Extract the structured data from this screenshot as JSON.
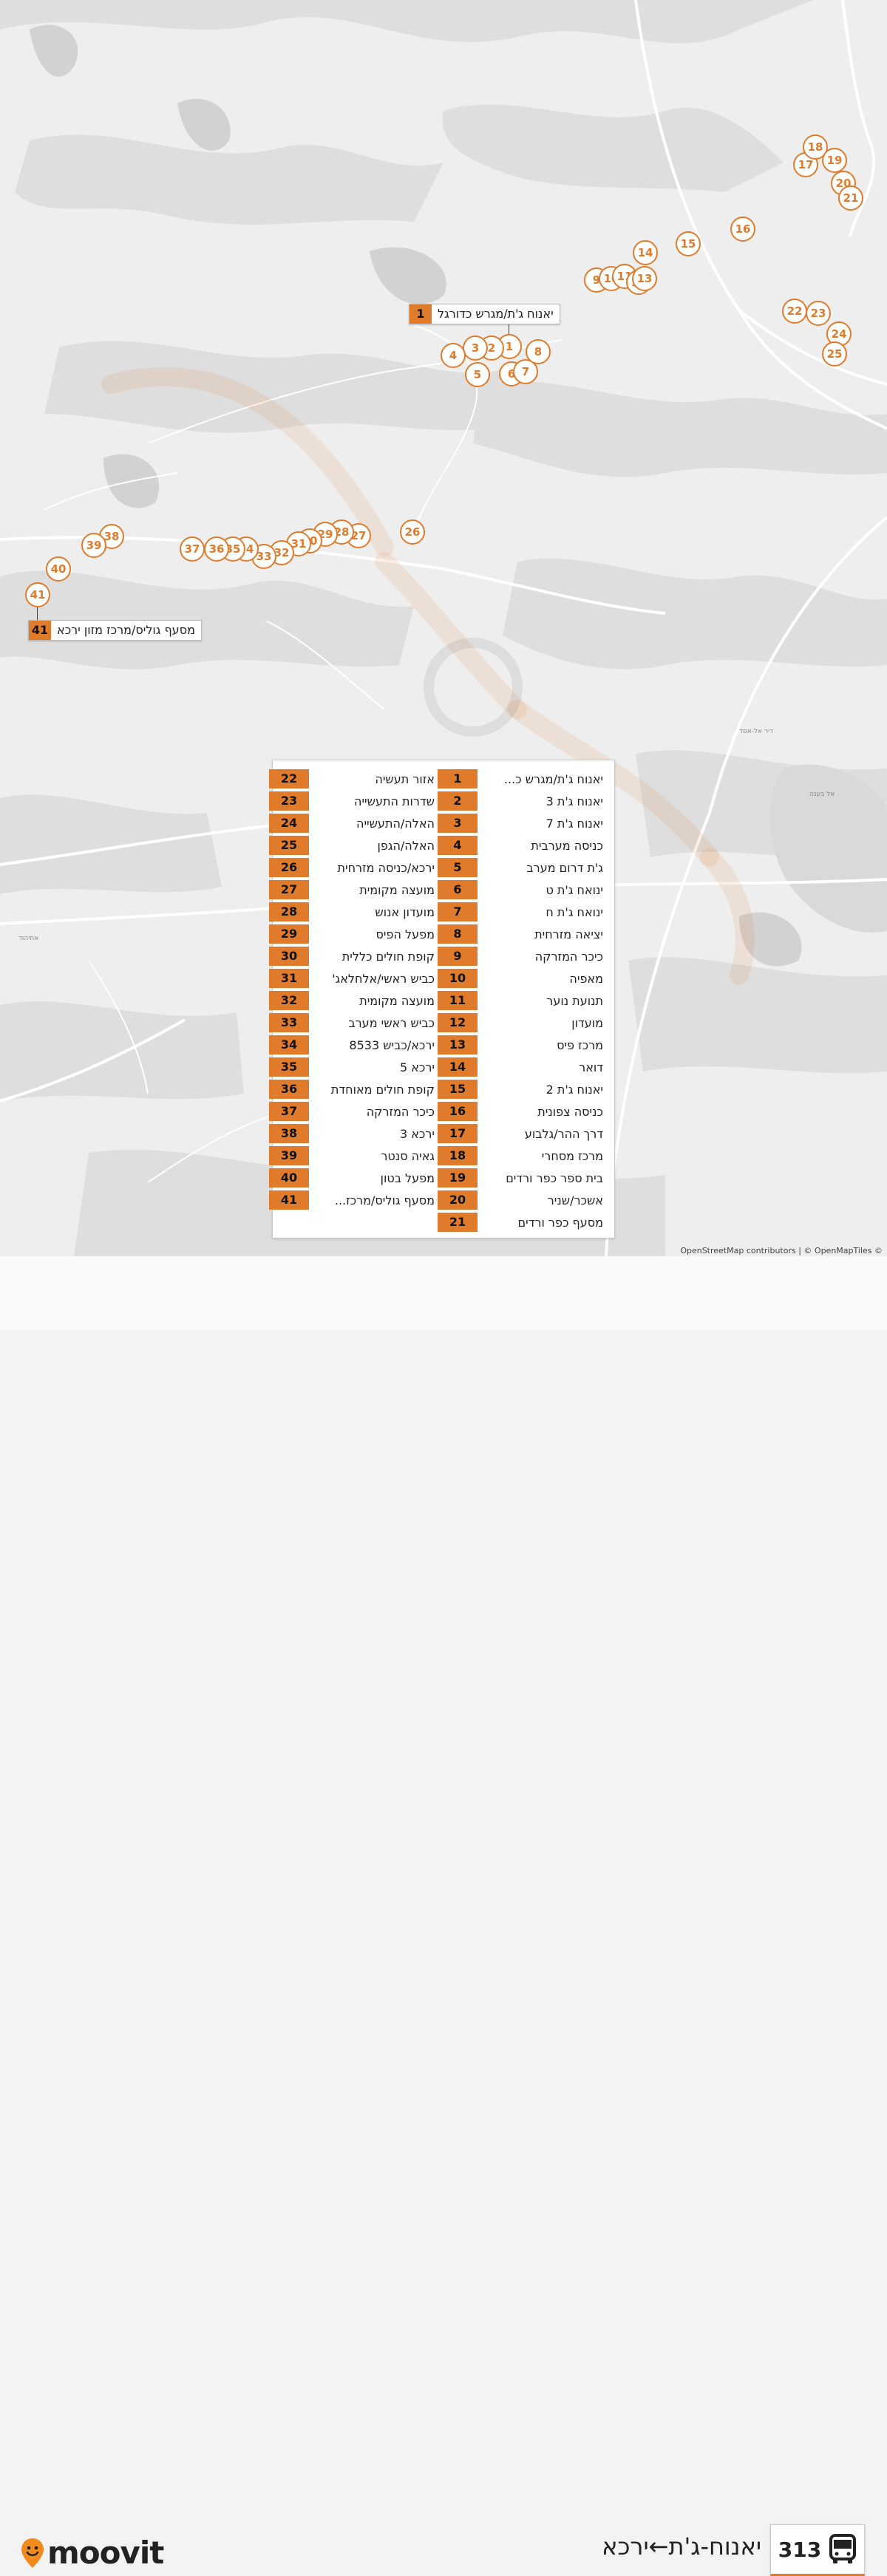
{
  "route": {
    "number": "313",
    "name": "יאנוח-ג'ת←ירכא",
    "icon": "bus-icon"
  },
  "brand": {
    "logo_text": "moovit",
    "icon": "moovit-pin-icon",
    "accent": "#e07b2c"
  },
  "attribution": "OpenStreetMap contributors | © OpenMapTiles ©",
  "map_labels": {
    "place_1": "דיר אל-אסד",
    "place_2": "אחיהוד",
    "place_3": "אל בענה"
  },
  "callouts": {
    "first": {
      "number": "1",
      "name": "יאנוח ג'ת/מגרש כדורגל"
    },
    "last": {
      "number": "41",
      "name": "מסעף גוליס/מרכז מזון ירכא"
    }
  },
  "stops": [
    {
      "n": "1",
      "name": "יאנוח ג'ת/מגרש כ..."
    },
    {
      "n": "2",
      "name": "יאנוח ג'ת 3"
    },
    {
      "n": "3",
      "name": "יאנוח ג'ת 7"
    },
    {
      "n": "4",
      "name": "כניסה מערבית"
    },
    {
      "n": "5",
      "name": "ג'ת דרום מערב"
    },
    {
      "n": "6",
      "name": "ינואח ג'ת ט"
    },
    {
      "n": "7",
      "name": "ינואח ג'ת ח"
    },
    {
      "n": "8",
      "name": "יציאה מזרחית"
    },
    {
      "n": "9",
      "name": "כיכר המזרקה"
    },
    {
      "n": "10",
      "name": "מאפיה"
    },
    {
      "n": "11",
      "name": "תנועת נוער"
    },
    {
      "n": "12",
      "name": "מועדון"
    },
    {
      "n": "13",
      "name": "מרכז פיס"
    },
    {
      "n": "14",
      "name": "דואר"
    },
    {
      "n": "15",
      "name": "יאנוח ג'ת 2"
    },
    {
      "n": "16",
      "name": "כניסה צפונית"
    },
    {
      "n": "17",
      "name": "דרך ההר/גלבוע"
    },
    {
      "n": "18",
      "name": "מרכז מסחרי"
    },
    {
      "n": "19",
      "name": "בית ספר כפר ורדים"
    },
    {
      "n": "20",
      "name": "אשכר/שניר"
    },
    {
      "n": "21",
      "name": "מסעף כפר ורדים"
    },
    {
      "n": "22",
      "name": "אזור תעשיה"
    },
    {
      "n": "23",
      "name": "שדרות התעשייה"
    },
    {
      "n": "24",
      "name": "האלה/התעשייה"
    },
    {
      "n": "25",
      "name": "האלה/הגפן"
    },
    {
      "n": "26",
      "name": "ירכא/כניסה מזרחית"
    },
    {
      "n": "27",
      "name": "מועצה מקומית"
    },
    {
      "n": "28",
      "name": "מועדון אנוש"
    },
    {
      "n": "29",
      "name": "מפעל הפיס"
    },
    {
      "n": "30",
      "name": "קופת חולים כללית"
    },
    {
      "n": "31",
      "name": "כביש ראשי/אלחלאג'"
    },
    {
      "n": "32",
      "name": "מועצה מקומית"
    },
    {
      "n": "33",
      "name": "כביש ראשי מערב"
    },
    {
      "n": "34",
      "name": "ירכא/כביש 8533"
    },
    {
      "n": "35",
      "name": "ירכא 5"
    },
    {
      "n": "36",
      "name": "קופת חולים מאוחדת"
    },
    {
      "n": "37",
      "name": "כיכר המזרקה"
    },
    {
      "n": "38",
      "name": "ירכא 3"
    },
    {
      "n": "39",
      "name": "גאיה סנטר"
    },
    {
      "n": "40",
      "name": "מפעל בטון"
    },
    {
      "n": "41",
      "name": "מסעף גוליס/מרכז..."
    }
  ]
}
